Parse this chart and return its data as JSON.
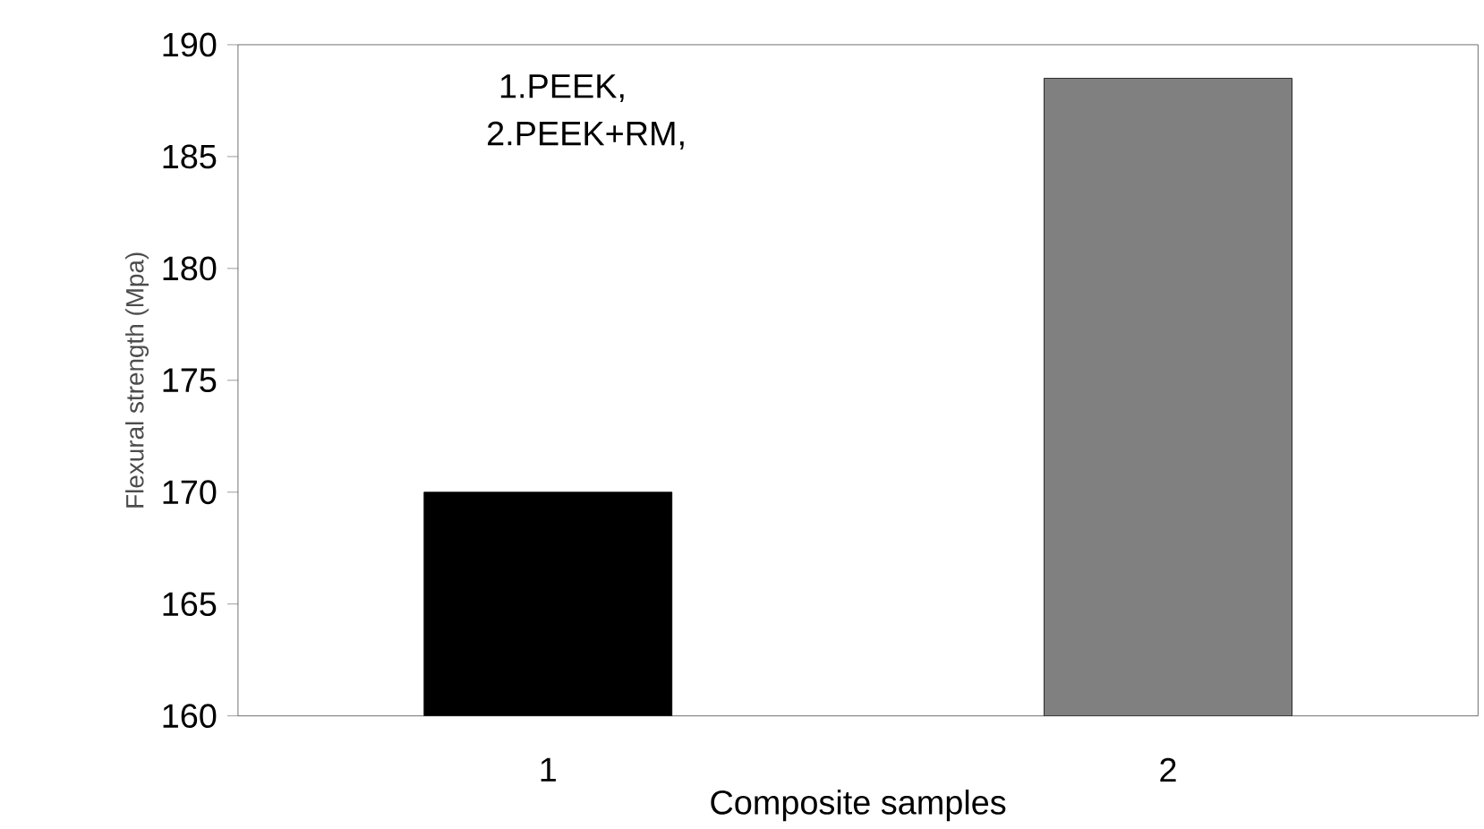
{
  "chart_data": {
    "type": "bar",
    "xlabel": "Composite samples",
    "ylabel": "Flexural strength (Mpa)",
    "annotations": [
      "1.PEEK,",
      "2.PEEK+RM,"
    ],
    "categories": [
      "1",
      "2"
    ],
    "values": [
      170,
      188.5
    ],
    "colors": [
      "#000000",
      "#808080"
    ],
    "ylim": [
      160,
      190
    ],
    "yticks": [
      160,
      165,
      170,
      175,
      180,
      185,
      190
    ],
    "grid": false
  }
}
